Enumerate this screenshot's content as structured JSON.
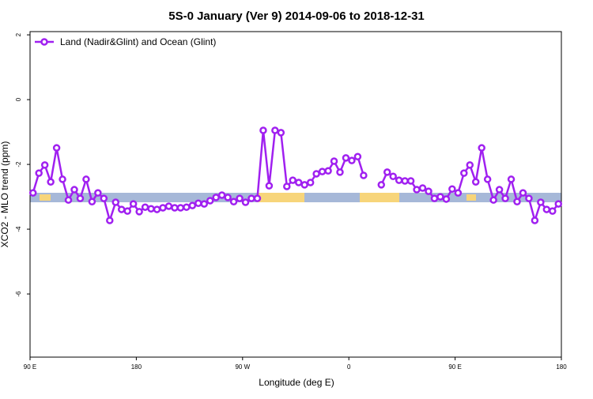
{
  "chart_data": {
    "type": "line",
    "title": "5S-0 January (Ver 9)   2014-09-06 to 2018-12-31",
    "xlabel": "Longitude (deg E)",
    "ylabel": "XCO2 - MLO trend (ppm)",
    "legend": "top-left",
    "xlim": [
      90,
      540
    ],
    "ylim": [
      -7.95,
      2.1
    ],
    "xticks": [
      {
        "value": 90,
        "label": "90 E"
      },
      180,
      {
        "value": 270,
        "label": "90 W"
      },
      {
        "value": 360,
        "label": "0"
      },
      {
        "value": 450,
        "label": "90 E"
      },
      {
        "value": 540,
        "label": "180"
      }
    ],
    "yticks": [
      -6,
      -4,
      -2,
      0,
      2
    ],
    "x": [
      92.5,
      97.5,
      102.5,
      107.5,
      112.5,
      117.5,
      122.5,
      127.5,
      132.5,
      137.5,
      142.5,
      147.5,
      152.5,
      157.5,
      162.5,
      167.5,
      172.5,
      177.5,
      182.5,
      187.5,
      192.5,
      197.5,
      202.5,
      207.5,
      212.5,
      217.5,
      222.5,
      227.5,
      232.5,
      237.5,
      242.5,
      247.5,
      252.5,
      257.5,
      262.5,
      267.5,
      272.5,
      277.5,
      282.5,
      287.5,
      292.5,
      297.5,
      302.5,
      307.5,
      312.5,
      317.5,
      322.5,
      327.5,
      332.5,
      337.5,
      342.5,
      347.5,
      352.5,
      357.5,
      362.5,
      367.5,
      372.5,
      377.5,
      382.5,
      387.5,
      392.5,
      397.5,
      402.5,
      407.5,
      412.5,
      417.5,
      422.5,
      427.5,
      432.5,
      437.5,
      442.5,
      447.5,
      452.5,
      457.5,
      462.5,
      467.5,
      472.5,
      477.5,
      482.5,
      487.5,
      492.5,
      497.5,
      502.5,
      507.5,
      512.5,
      517.5,
      522.5,
      527.5,
      532.5,
      537.5
    ],
    "series": [
      {
        "name": "Land (Nadir&Glint) and Ocean (Glint)",
        "color": "#a020f0",
        "values": [
          -2.88,
          -2.27,
          -2.02,
          -2.54,
          -1.49,
          -2.46,
          -3.1,
          -2.78,
          -3.05,
          -2.46,
          -3.15,
          -2.88,
          -3.05,
          -3.73,
          -3.17,
          -3.39,
          -3.44,
          -3.22,
          -3.46,
          -3.32,
          -3.37,
          -3.39,
          -3.34,
          -3.29,
          -3.34,
          -3.34,
          -3.32,
          -3.27,
          -3.2,
          -3.22,
          -3.12,
          -3.02,
          -2.95,
          -3.02,
          -3.15,
          -3.05,
          -3.17,
          -3.05,
          -3.05,
          -0.95,
          -2.66,
          -0.95,
          -1.02,
          -2.68,
          -2.49,
          -2.56,
          -2.63,
          -2.56,
          -2.29,
          -2.22,
          -2.2,
          -1.9,
          -2.24,
          -1.8,
          -1.88,
          -1.76,
          -2.34,
          null,
          null,
          -2.63,
          -2.24,
          -2.37,
          -2.49,
          -2.51,
          -2.51,
          -2.78,
          -2.73,
          -2.83,
          -3.05,
          -3.0,
          -3.07,
          -2.76,
          -2.88,
          -2.27,
          -2.02,
          -2.54,
          -1.49,
          -2.46,
          -3.1,
          -2.78,
          -3.05,
          -2.46,
          -3.15,
          -2.88,
          -3.05,
          -3.73,
          -3.17,
          -3.39,
          -3.44,
          -3.22
        ]
      }
    ]
  }
}
